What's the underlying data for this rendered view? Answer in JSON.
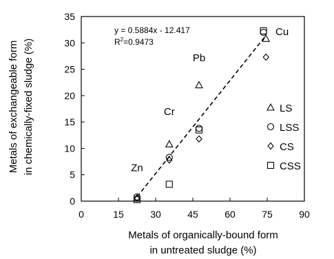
{
  "chart_data": {
    "type": "scatter",
    "xlabel_line1": "Metals of organically-bound form",
    "xlabel_line2": "in untreated sludge (%)",
    "ylabel_line1": "Metals of exchangeable form",
    "ylabel_line2": "in chemically-fixed sludge (%)",
    "xlim": [
      0,
      90
    ],
    "ylim": [
      0,
      35
    ],
    "xticks": [
      0,
      15,
      30,
      45,
      60,
      75,
      90
    ],
    "yticks": [
      0,
      5,
      10,
      15,
      20,
      25,
      30,
      35
    ],
    "equation": "y = 0.5884x - 12.417",
    "r2_prefix": "R",
    "r2_sup": "2",
    "r2_rest": "=0.9473",
    "trendline": {
      "slope": 0.5884,
      "intercept": -12.417,
      "x_range": [
        22.5,
        74.5
      ],
      "style": "dashed"
    },
    "legend_position": "right",
    "series": [
      {
        "name": "LS",
        "marker": "triangle",
        "points": [
          [
            22.5,
            0.6
          ],
          [
            35.5,
            10.8
          ],
          [
            47.5,
            22.0
          ],
          [
            74.5,
            30.8
          ]
        ]
      },
      {
        "name": "LSS",
        "marker": "circle",
        "points": [
          [
            22.5,
            0.8
          ],
          [
            35.5,
            8.3
          ],
          [
            47.5,
            13.8
          ],
          [
            73.5,
            32.0
          ]
        ]
      },
      {
        "name": "CS",
        "marker": "diamond",
        "points": [
          [
            22.5,
            0.5
          ],
          [
            35.5,
            7.8
          ],
          [
            47.5,
            11.8
          ],
          [
            74.5,
            27.3
          ]
        ]
      },
      {
        "name": "CSS",
        "marker": "square",
        "points": [
          [
            22.5,
            0.3
          ],
          [
            35.5,
            3.2
          ],
          [
            47.5,
            13.5
          ],
          [
            73.5,
            32.3
          ]
        ]
      }
    ],
    "annotations": [
      {
        "text": "Zn",
        "x": 22.5,
        "y": 5.7
      },
      {
        "text": "Cr",
        "x": 35.5,
        "y": 16.3
      },
      {
        "text": "Pb",
        "x": 47.5,
        "y": 26.5
      },
      {
        "text": "Cu",
        "x": 81,
        "y": 31.5
      }
    ]
  }
}
